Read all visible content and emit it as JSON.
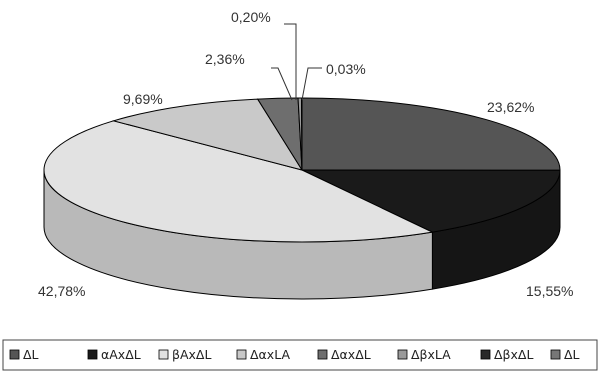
{
  "chart_data": {
    "type": "pie",
    "title": "",
    "three_d": true,
    "legend_position": "bottom",
    "slices": [
      {
        "label": "ΔL",
        "value": 23.62,
        "value_label": "23,62%",
        "color": "#555555"
      },
      {
        "label": "αAxΔL",
        "value": 15.55,
        "value_label": "15,55%",
        "color": "#1a1a1a"
      },
      {
        "label": "βAxΔL",
        "value": 42.78,
        "value_label": "42,78%",
        "color": "#e2e2e2"
      },
      {
        "label": "ΔαxLA",
        "value": 9.69,
        "value_label": "9,69%",
        "color": "#c9c9c9"
      },
      {
        "label": "ΔαxΔL",
        "value": 2.36,
        "value_label": "2,36%",
        "color": "#6e6e6e"
      },
      {
        "label": "ΔβxLA",
        "value": 0.2,
        "value_label": "0,20%",
        "color": "#9a9a9a"
      },
      {
        "label": "ΔβxΔL",
        "value": 0.03,
        "value_label": "0,03%",
        "color": "#2a2a2a"
      },
      {
        "label": "ΔL",
        "value": 0.0,
        "value_label": "",
        "color": "#777777"
      }
    ]
  }
}
